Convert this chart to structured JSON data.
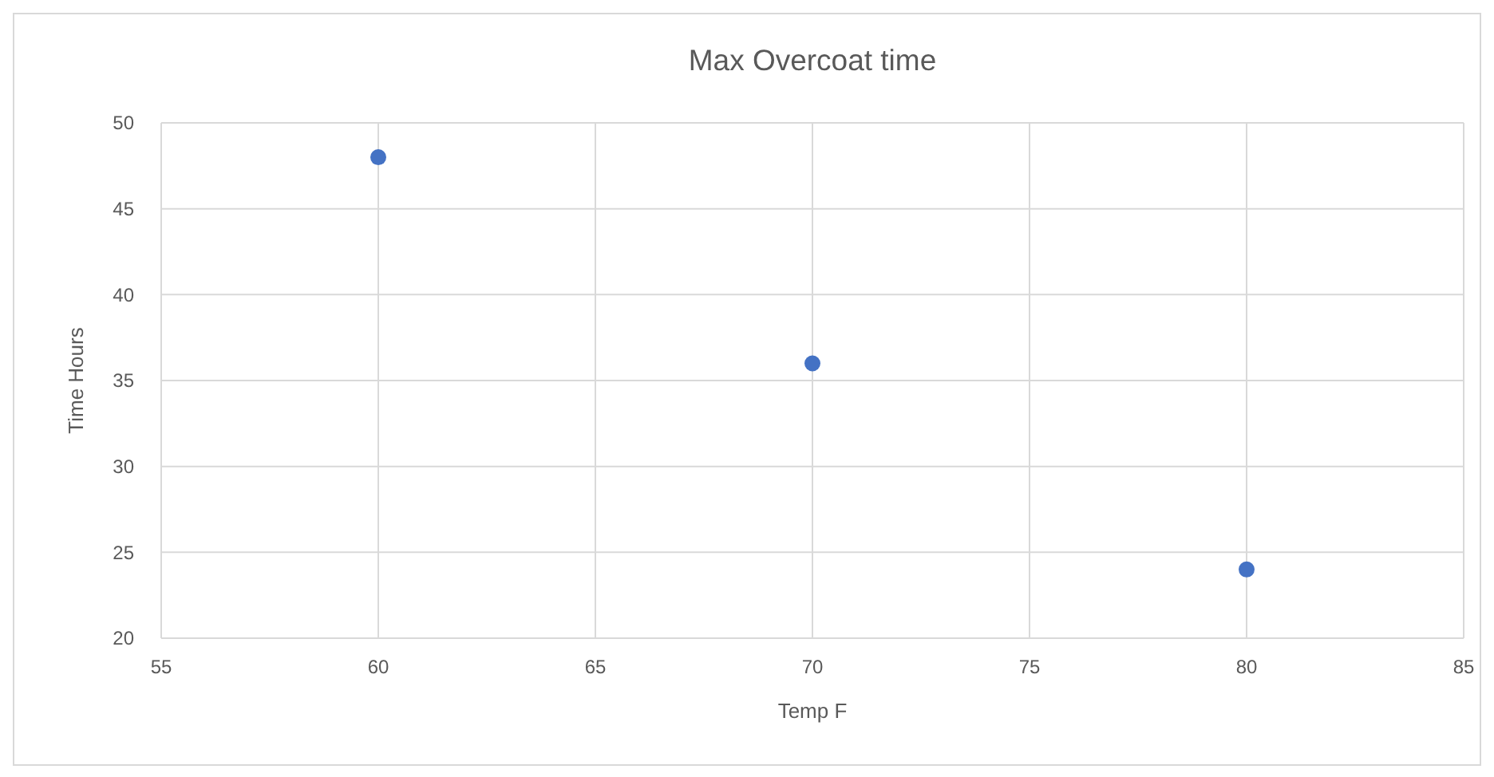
{
  "chart_data": {
    "type": "scatter",
    "title": "Max Overcoat time",
    "xlabel": "Temp F",
    "ylabel": "Time Hours",
    "x": [
      60,
      70,
      80
    ],
    "series": [
      {
        "color": "#4472c4",
        "values": [
          48,
          36,
          24
        ]
      }
    ],
    "xlim": [
      55,
      85
    ],
    "xticks": [
      55,
      60,
      65,
      70,
      75,
      80,
      85
    ],
    "ylim": [
      20,
      50
    ],
    "yticks": [
      20,
      25,
      30,
      35,
      40,
      45,
      50
    ],
    "grid": true,
    "marker": "circle"
  }
}
